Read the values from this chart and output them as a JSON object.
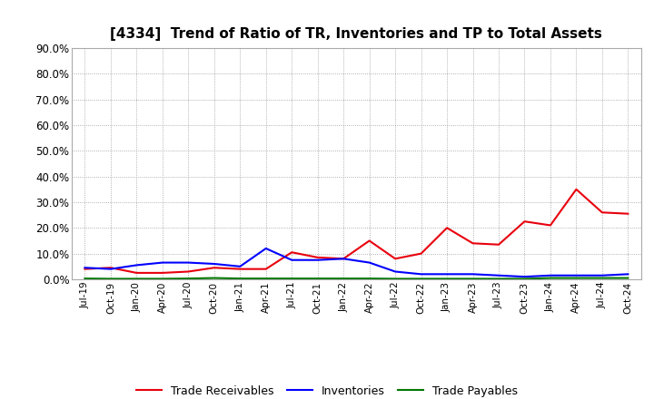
{
  "title": "[4334]  Trend of Ratio of TR, Inventories and TP to Total Assets",
  "x_labels": [
    "Jul-19",
    "Oct-19",
    "Jan-20",
    "Apr-20",
    "Jul-20",
    "Oct-20",
    "Jan-21",
    "Apr-21",
    "Jul-21",
    "Oct-21",
    "Jan-22",
    "Apr-22",
    "Jul-22",
    "Oct-22",
    "Jan-23",
    "Apr-23",
    "Jul-23",
    "Oct-23",
    "Jan-24",
    "Apr-24",
    "Jul-24",
    "Oct-24"
  ],
  "trade_receivables": [
    4.0,
    4.5,
    2.5,
    2.5,
    3.0,
    4.5,
    4.0,
    4.0,
    10.5,
    8.5,
    8.0,
    15.0,
    8.0,
    10.0,
    20.0,
    14.0,
    13.5,
    22.5,
    21.0,
    35.0,
    26.0,
    25.5
  ],
  "inventories": [
    4.5,
    4.0,
    5.5,
    6.5,
    6.5,
    6.0,
    5.0,
    12.0,
    7.5,
    7.5,
    8.0,
    6.5,
    3.0,
    2.0,
    2.0,
    2.0,
    1.5,
    1.0,
    1.5,
    1.5,
    1.5,
    2.0
  ],
  "trade_payables": [
    0.3,
    0.2,
    0.2,
    0.2,
    0.3,
    0.5,
    0.3,
    0.3,
    0.3,
    0.3,
    0.3,
    0.3,
    0.2,
    0.2,
    0.2,
    0.2,
    0.2,
    0.2,
    0.5,
    0.5,
    0.5,
    0.5
  ],
  "tr_color": "#e8000d",
  "inv_color": "#0000ff",
  "tp_color": "#007700",
  "ylim": [
    0,
    90
  ],
  "yticks": [
    0,
    10,
    20,
    30,
    40,
    50,
    60,
    70,
    80,
    90
  ],
  "background_color": "#ffffff",
  "grid_color": "#aaaaaa",
  "legend_labels": [
    "Trade Receivables",
    "Inventories",
    "Trade Payables"
  ]
}
